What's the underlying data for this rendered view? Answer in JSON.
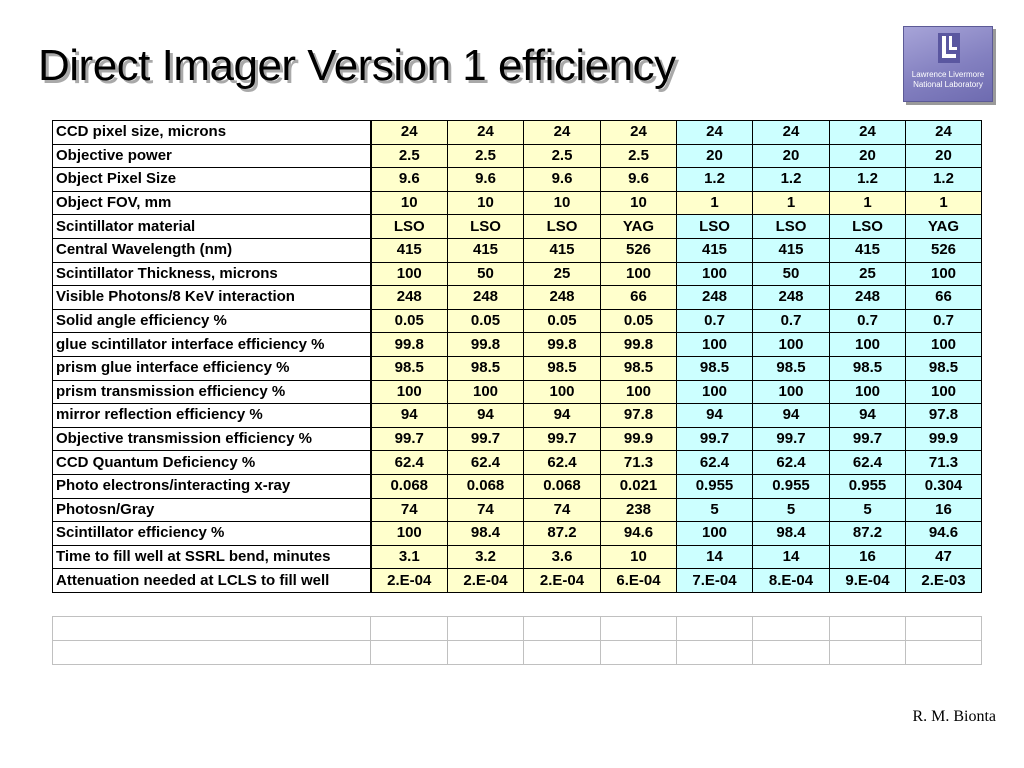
{
  "slide": {
    "title": "Direct Imager Version 1 efficiency",
    "author": "R. M. Bionta"
  },
  "logo": {
    "line1": "Lawrence Livermore",
    "line2": "National Laboratory",
    "color": "#8380c0"
  },
  "table": {
    "rows": [
      {
        "label": "CCD pixel size, microns",
        "values": [
          "24",
          "24",
          "24",
          "24",
          "24",
          "24",
          "24",
          "24"
        ]
      },
      {
        "label": "Objective power",
        "values": [
          "2.5",
          "2.5",
          "2.5",
          "2.5",
          "20",
          "20",
          "20",
          "20"
        ]
      },
      {
        "label": "Object Pixel Size",
        "values": [
          "9.6",
          "9.6",
          "9.6",
          "9.6",
          "1.2",
          "1.2",
          "1.2",
          "1.2"
        ]
      },
      {
        "label": "Object FOV, mm",
        "values": [
          "10",
          "10",
          "10",
          "10",
          "1",
          "1",
          "1",
          "1"
        ],
        "highlight_all": true
      },
      {
        "label": "Scintillator material",
        "values": [
          "LSO",
          "LSO",
          "LSO",
          "YAG",
          "LSO",
          "LSO",
          "LSO",
          "YAG"
        ]
      },
      {
        "label": "Central Wavelength (nm)",
        "values": [
          "415",
          "415",
          "415",
          "526",
          "415",
          "415",
          "415",
          "526"
        ]
      },
      {
        "label": "Scintillator Thickness, microns",
        "values": [
          "100",
          "50",
          "25",
          "100",
          "100",
          "50",
          "25",
          "100"
        ]
      },
      {
        "label": "Visible Photons/8 KeV interaction",
        "values": [
          "248",
          "248",
          "248",
          "66",
          "248",
          "248",
          "248",
          "66"
        ]
      },
      {
        "label": "Solid angle efficiency %",
        "values": [
          "0.05",
          "0.05",
          "0.05",
          "0.05",
          "0.7",
          "0.7",
          "0.7",
          "0.7"
        ]
      },
      {
        "label": "glue scintillator interface efficiency %",
        "values": [
          "99.8",
          "99.8",
          "99.8",
          "99.8",
          "100",
          "100",
          "100",
          "100"
        ]
      },
      {
        "label": "prism glue interface efficiency %",
        "values": [
          "98.5",
          "98.5",
          "98.5",
          "98.5",
          "98.5",
          "98.5",
          "98.5",
          "98.5"
        ]
      },
      {
        "label": "prism transmission efficiency %",
        "values": [
          "100",
          "100",
          "100",
          "100",
          "100",
          "100",
          "100",
          "100"
        ]
      },
      {
        "label": "mirror reflection efficiency %",
        "values": [
          "94",
          "94",
          "94",
          "97.8",
          "94",
          "94",
          "94",
          "97.8"
        ]
      },
      {
        "label": "Objective transmission efficiency %",
        "values": [
          "99.7",
          "99.7",
          "99.7",
          "99.9",
          "99.7",
          "99.7",
          "99.7",
          "99.9"
        ]
      },
      {
        "label": "CCD Quantum Deficiency %",
        "values": [
          "62.4",
          "62.4",
          "62.4",
          "71.3",
          "62.4",
          "62.4",
          "62.4",
          "71.3"
        ]
      },
      {
        "label": "Photo electrons/interacting x-ray",
        "values": [
          "0.068",
          "0.068",
          "0.068",
          "0.021",
          "0.955",
          "0.955",
          "0.955",
          "0.304"
        ]
      },
      {
        "label": "Photosn/Gray",
        "values": [
          "74",
          "74",
          "74",
          "238",
          "5",
          "5",
          "5",
          "16"
        ]
      },
      {
        "label": "Scintillator efficiency %",
        "values": [
          "100",
          "98.4",
          "87.2",
          "94.6",
          "100",
          "98.4",
          "87.2",
          "94.6"
        ]
      },
      {
        "label": "Time to fill well at SSRL bend, minutes",
        "values": [
          "3.1",
          "3.2",
          "3.6",
          "10",
          "14",
          "14",
          "16",
          "47"
        ]
      },
      {
        "label": "Attenuation needed at LCLS to fill well",
        "values": [
          "2.E-04",
          "2.E-04",
          "2.E-04",
          "6.E-04",
          "7.E-04",
          "8.E-04",
          "9.E-04",
          "2.E-03"
        ]
      }
    ],
    "empty_row_count": 2,
    "colors": {
      "group1_fill": "#ffffcc",
      "group2_fill": "#ccffff"
    }
  }
}
